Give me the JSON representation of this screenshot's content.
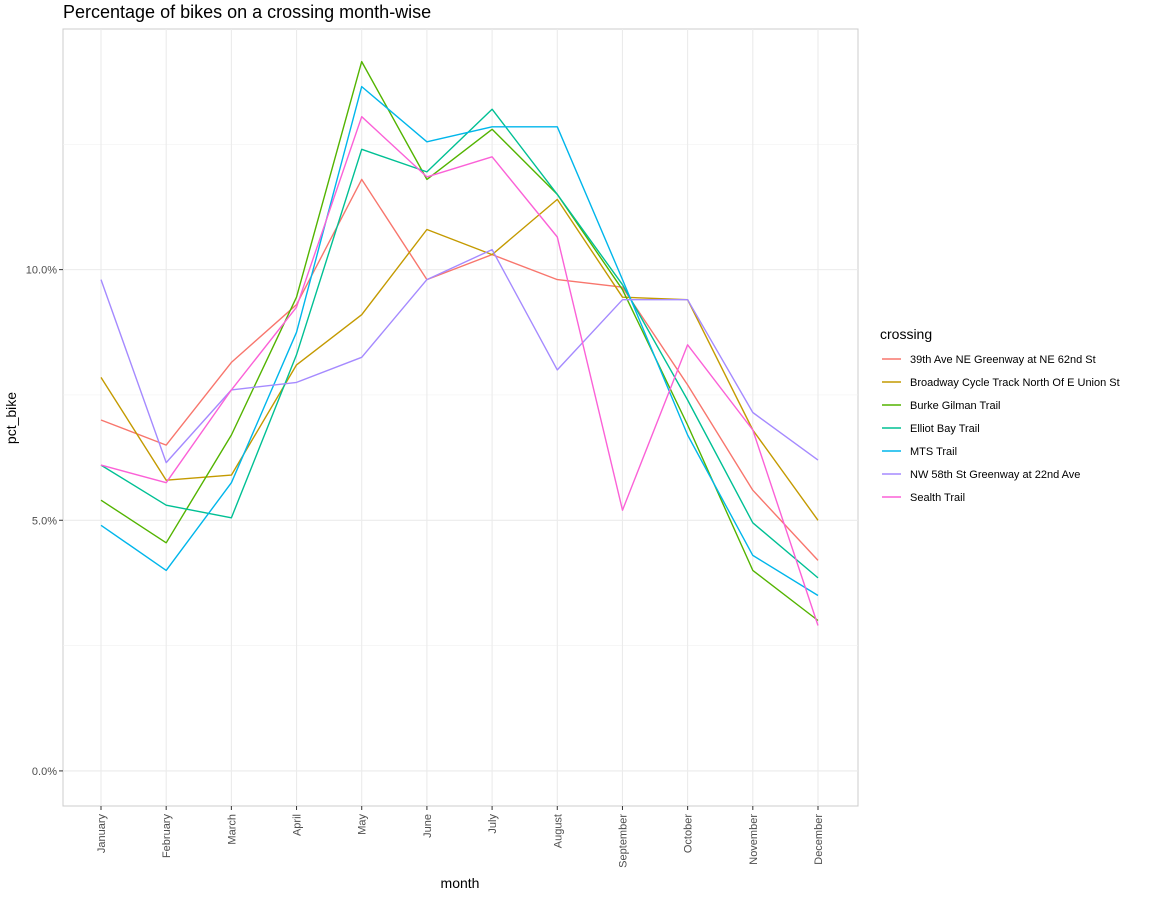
{
  "chart_data": {
    "type": "line",
    "title": "Percentage of bikes on a crossing month-wise",
    "xlabel": "month",
    "ylabel": "pct_bike",
    "categories": [
      "January",
      "February",
      "March",
      "April",
      "May",
      "June",
      "July",
      "August",
      "September",
      "October",
      "November",
      "December"
    ],
    "ylim": [
      -0.007,
      0.148
    ],
    "y_ticks": [
      0,
      0.05,
      0.1
    ],
    "y_tick_labels": [
      "0.0%",
      "5.0%",
      "10.0%"
    ],
    "grid": true,
    "legend_title": "crossing",
    "legend_position": "right",
    "series": [
      {
        "name": "39th Ave NE Greenway at NE 62nd St",
        "color": "#F8766D",
        "values": [
          0.07,
          0.065,
          0.0815,
          0.093,
          0.118,
          0.098,
          0.103,
          0.098,
          0.0965,
          0.077,
          0.056,
          0.042
        ]
      },
      {
        "name": "Broadway Cycle Track North Of E Union St",
        "color": "#C49A00",
        "values": [
          0.0785,
          0.058,
          0.059,
          0.081,
          0.091,
          0.108,
          0.103,
          0.114,
          0.0945,
          0.094,
          0.068,
          0.05
        ]
      },
      {
        "name": "Burke Gilman Trail",
        "color": "#53B400",
        "values": [
          0.054,
          0.0455,
          0.067,
          0.0945,
          0.1415,
          0.118,
          0.128,
          0.115,
          0.096,
          0.069,
          0.04,
          0.03
        ]
      },
      {
        "name": "Elliot Bay Trail",
        "color": "#00C094",
        "values": [
          0.061,
          0.053,
          0.0505,
          0.083,
          0.124,
          0.1195,
          0.132,
          0.115,
          0.097,
          0.074,
          0.0495,
          0.0385
        ]
      },
      {
        "name": "MTS Trail",
        "color": "#00B6EB",
        "values": [
          0.049,
          0.04,
          0.0575,
          0.0875,
          0.1365,
          0.1255,
          0.1285,
          0.1285,
          0.098,
          0.067,
          0.043,
          0.035
        ]
      },
      {
        "name": "NW 58th St Greenway at 22nd Ave",
        "color": "#A58AFF",
        "values": [
          0.098,
          0.0615,
          0.076,
          0.0775,
          0.0825,
          0.098,
          0.104,
          0.08,
          0.094,
          0.094,
          0.0715,
          0.062
        ]
      },
      {
        "name": "Sealth Trail",
        "color": "#FB61D7",
        "values": [
          0.061,
          0.0575,
          0.076,
          0.0925,
          0.1305,
          0.1185,
          0.1225,
          0.1065,
          0.052,
          0.085,
          0.068,
          0.029
        ]
      }
    ]
  }
}
